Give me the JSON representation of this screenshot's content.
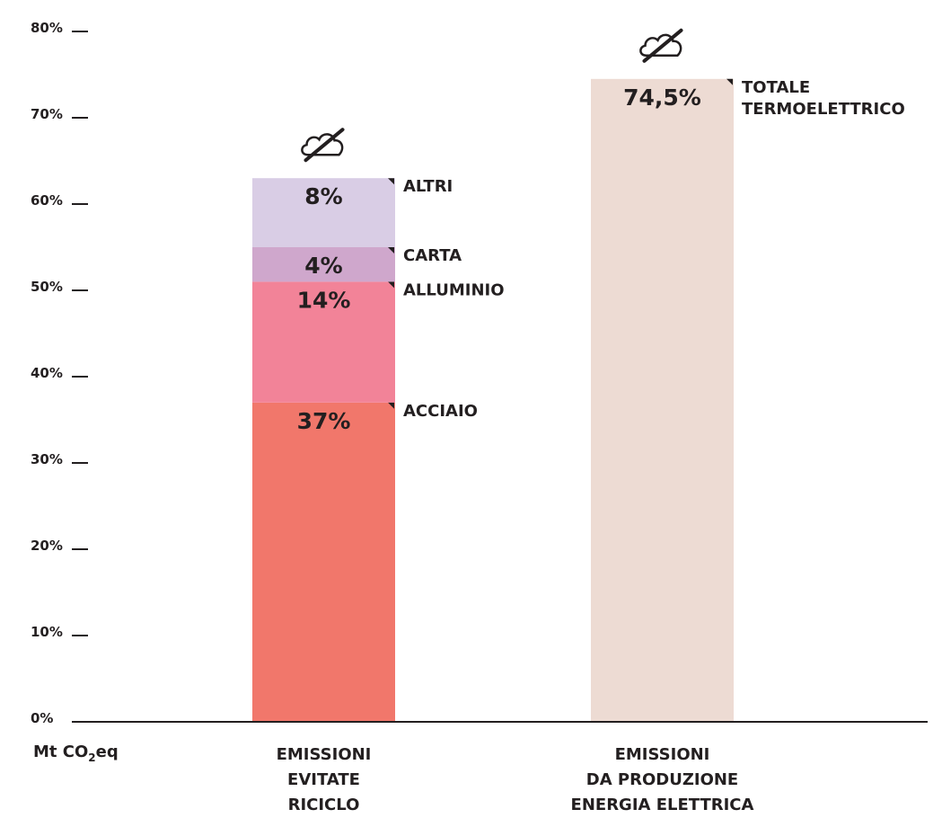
{
  "chart_data": {
    "type": "bar",
    "stacked": true,
    "xlabel": "Mt CO2eq",
    "xlabel_main": "Mt CO",
    "xlabel_sub": "2",
    "xlabel_tail": "eq",
    "ylim": [
      0,
      80
    ],
    "yticks": [
      {
        "value": 0,
        "label": "0%"
      },
      {
        "value": 10,
        "label": "10%"
      },
      {
        "value": 20,
        "label": "20%"
      },
      {
        "value": 30,
        "label": "30%"
      },
      {
        "value": 40,
        "label": "40%"
      },
      {
        "value": 50,
        "label": "50%"
      },
      {
        "value": 60,
        "label": "60%"
      },
      {
        "value": 70,
        "label": "70%"
      },
      {
        "value": 80,
        "label": "80%"
      }
    ],
    "bars": [
      {
        "category": "EMISSIONI EVITATE RICICLO",
        "category_lines": [
          "EMISSIONI",
          "EVITATE",
          "RICICLO"
        ],
        "icon": "no-cloud-icon",
        "segments": [
          {
            "name": "ACCIAIO",
            "value": 37,
            "label": "37%",
            "color": "#f1776b"
          },
          {
            "name": "ALLUMINIO",
            "value": 14,
            "label": "14%",
            "color": "#f28398"
          },
          {
            "name": "CARTA",
            "value": 4,
            "label": "4%",
            "color": "#cfa7cc"
          },
          {
            "name": "ALTRI",
            "value": 8,
            "label": "8%",
            "color": "#d9cde5"
          }
        ]
      },
      {
        "category": "EMISSIONI DA PRODUZIONE ENERGIA ELETTRICA",
        "category_lines": [
          "EMISSIONI",
          "DA PRODUZIONE",
          "ENERGIA ELETTRICA"
        ],
        "icon": "no-cloud-icon",
        "segments": [
          {
            "name": "TOTALE TERMOELETTRICO",
            "name_lines": [
              "TOTALE",
              "TERMOELETTRICO"
            ],
            "value": 74.5,
            "label": "74,5%",
            "color": "#eddbd3"
          }
        ]
      }
    ]
  }
}
